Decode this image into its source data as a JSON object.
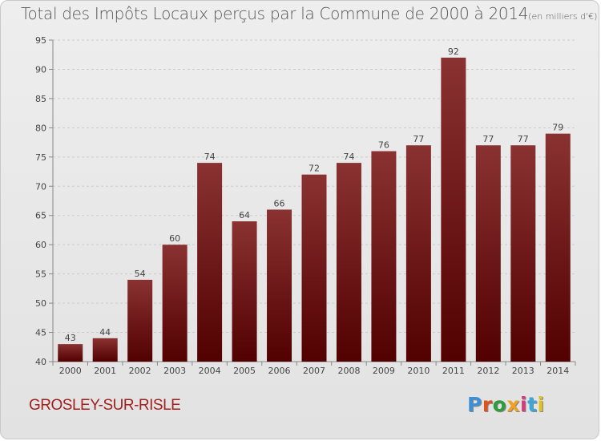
{
  "title": "Total des Impôts Locaux perçus par la Commune de 2000 à 2014",
  "title_unit": "(en milliers d'€)",
  "commune": "GROSLEY-SUR-RISLE",
  "logo": {
    "text": "Proxiti",
    "letter_colors": [
      "#3f8fd6",
      "#e0521c",
      "#2e9c3a",
      "#f0a020",
      "#d83a7a",
      "#3aa6d9",
      "#e0c020"
    ]
  },
  "colors": {
    "bar_top": "#8a3232",
    "bar_bottom": "#520000",
    "grid": "#cccccc",
    "text": "#444444",
    "commune": "#a3201f"
  },
  "chart_data": {
    "type": "bar",
    "categories": [
      "2000",
      "2001",
      "2002",
      "2003",
      "2004",
      "2005",
      "2006",
      "2007",
      "2008",
      "2009",
      "2010",
      "2011",
      "2012",
      "2013",
      "2014"
    ],
    "values": [
      43,
      44,
      54,
      60,
      74,
      64,
      66,
      72,
      74,
      76,
      77,
      92,
      77,
      77,
      79
    ],
    "ylim": [
      40,
      95
    ],
    "yticks": [
      40,
      45,
      50,
      55,
      60,
      65,
      70,
      75,
      80,
      85,
      90,
      95
    ],
    "grid": true,
    "data_labels": true
  }
}
